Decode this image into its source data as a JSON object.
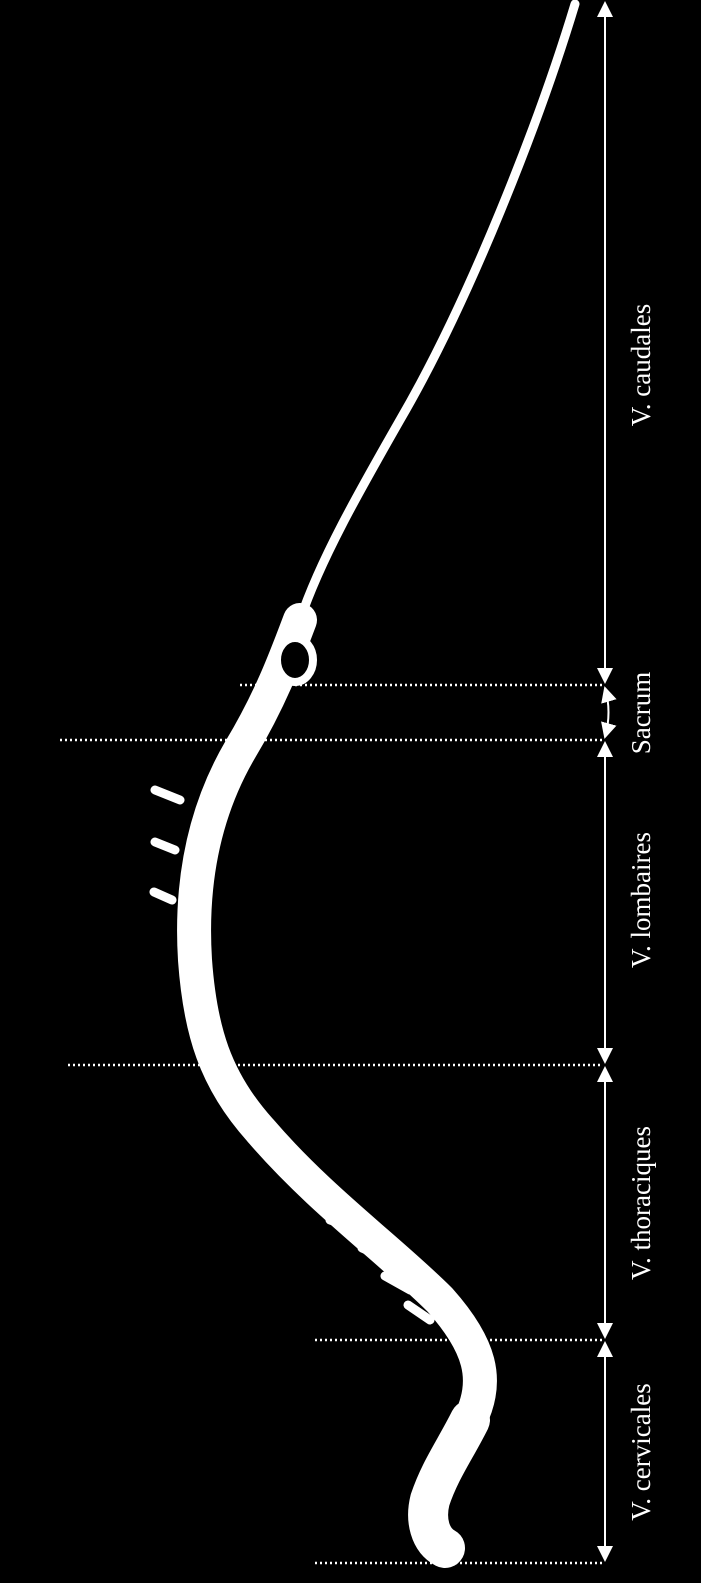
{
  "labels": {
    "caudal": "V. caudales",
    "sacrum": "Sacrum",
    "lumbar": "V. lombaires",
    "thoracic": "V. thoraciques",
    "cervical": "V. cervicales"
  }
}
